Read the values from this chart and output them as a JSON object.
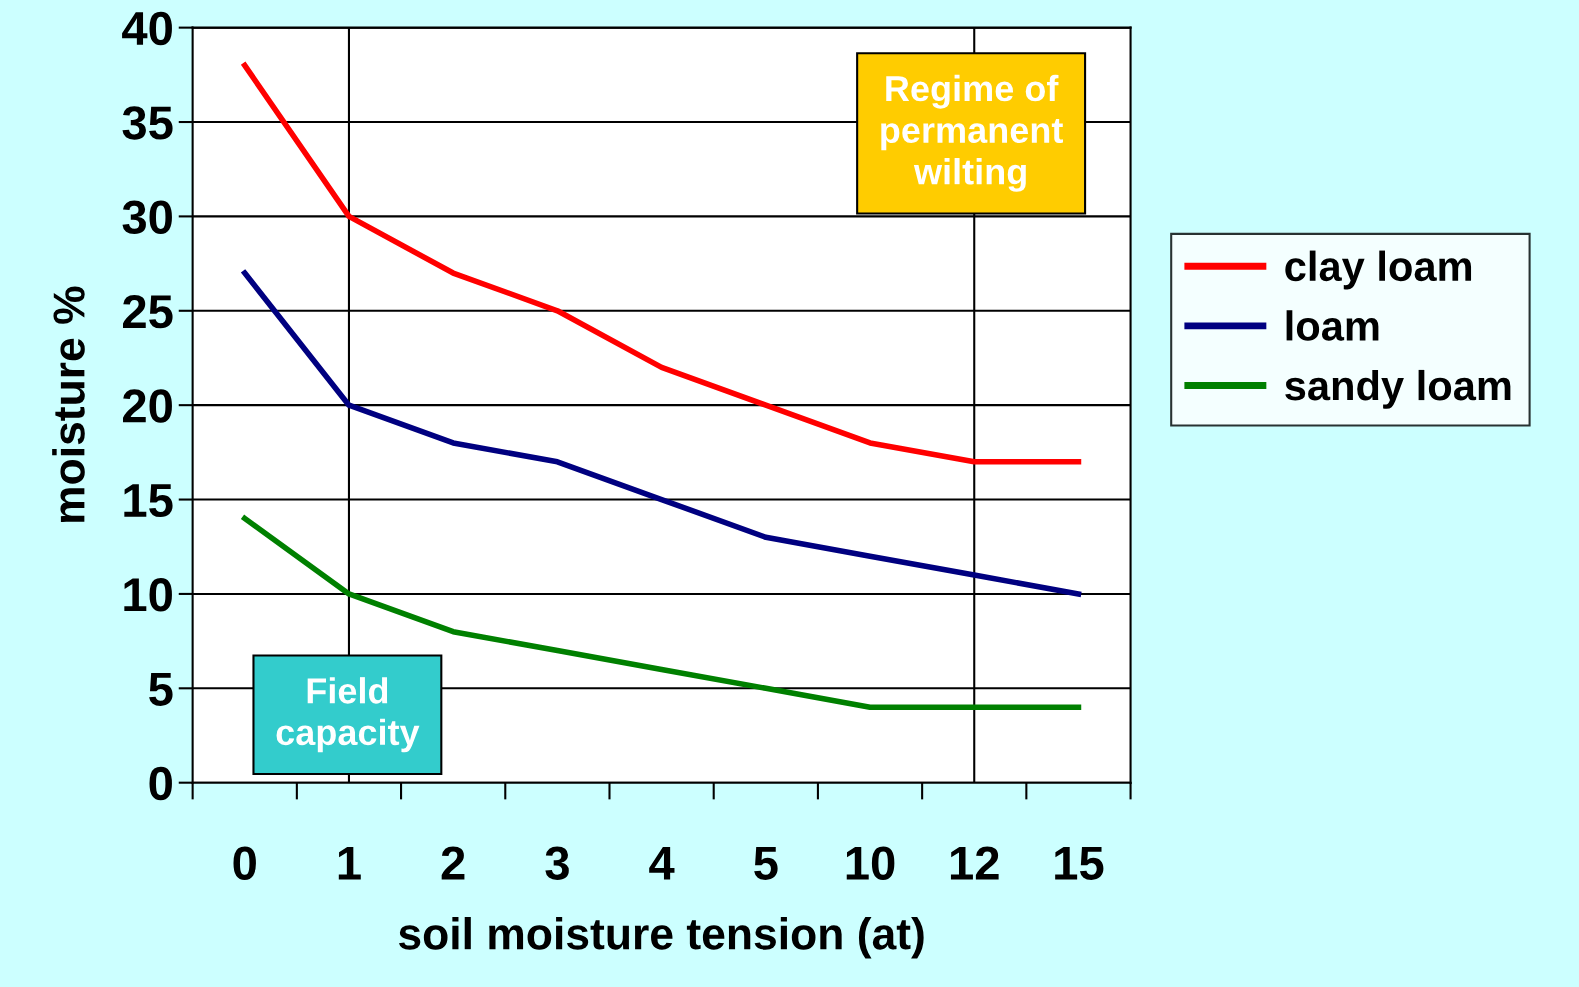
{
  "chart_data": {
    "type": "line",
    "xlabel": "soil moisture tension (at)",
    "ylabel": "moisture %",
    "categories": [
      "0",
      "1",
      "2",
      "3",
      "4",
      "5",
      "10",
      "12",
      "15"
    ],
    "series": [
      {
        "name": "clay loam",
        "color": "#ff0000",
        "values": [
          38,
          30,
          27,
          25,
          22,
          20,
          18,
          17,
          17
        ]
      },
      {
        "name": "loam",
        "color": "#000080",
        "values": [
          27,
          20,
          18,
          17,
          15,
          13,
          12,
          11,
          10
        ]
      },
      {
        "name": "sandy loam",
        "color": "#008000",
        "values": [
          14,
          10,
          8,
          7,
          6,
          5,
          4,
          4,
          4
        ]
      }
    ],
    "ylim": [
      0,
      40
    ],
    "yticks": [
      0,
      5,
      10,
      15,
      20,
      25,
      30,
      35,
      40
    ],
    "grid": "y",
    "legend": "right",
    "marker": "none",
    "line_style": "solid",
    "ref_lines": [
      {
        "axis": "x",
        "value": "1",
        "color": "#000000"
      },
      {
        "axis": "x",
        "value": "12",
        "color": "#000000"
      }
    ],
    "annotations": [
      "Regime of permanent wilting",
      "Field capacity"
    ]
  }
}
